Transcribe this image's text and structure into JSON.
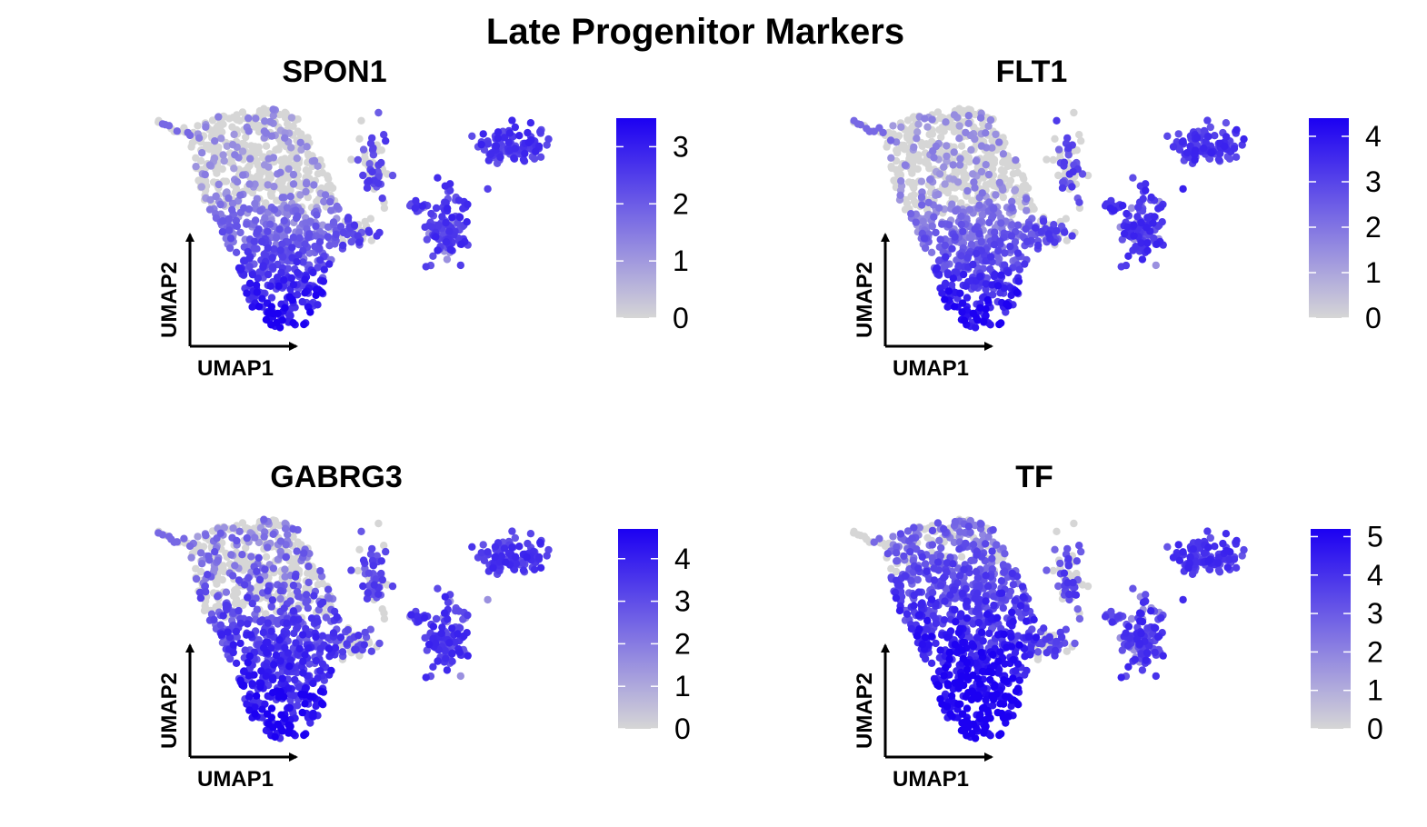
{
  "figure": {
    "title": "Late Progenitor Markers"
  },
  "colors": {
    "low": "#d6d6d6",
    "high": "#1c00f2",
    "axis": "#000000"
  },
  "chart_data": [
    {
      "type": "scatter",
      "panel": "SPON1",
      "title": "SPON1",
      "xlabel": "UMAP1",
      "ylabel": "UMAP2",
      "color_scale": {
        "min": 0,
        "max": 3.5,
        "ticks": [
          0,
          1,
          2,
          3
        ]
      },
      "pattern": "bottom"
    },
    {
      "type": "scatter",
      "panel": "FLT1",
      "title": "FLT1",
      "xlabel": "UMAP1",
      "ylabel": "UMAP2",
      "color_scale": {
        "min": 0,
        "max": 4.4,
        "ticks": [
          0,
          1,
          2,
          3,
          4
        ]
      },
      "pattern": "bottom"
    },
    {
      "type": "scatter",
      "panel": "GABRG3",
      "title": "GABRG3",
      "xlabel": "UMAP1",
      "ylabel": "UMAP2",
      "color_scale": {
        "min": 0,
        "max": 4.7,
        "ticks": [
          0,
          1,
          2,
          3,
          4
        ]
      },
      "pattern": "broad"
    },
    {
      "type": "scatter",
      "panel": "TF",
      "title": "TF",
      "xlabel": "UMAP1",
      "ylabel": "UMAP2",
      "color_scale": {
        "min": 0,
        "max": 5.2,
        "ticks": [
          0,
          1,
          2,
          3,
          4,
          5
        ]
      },
      "pattern": "strong"
    }
  ]
}
